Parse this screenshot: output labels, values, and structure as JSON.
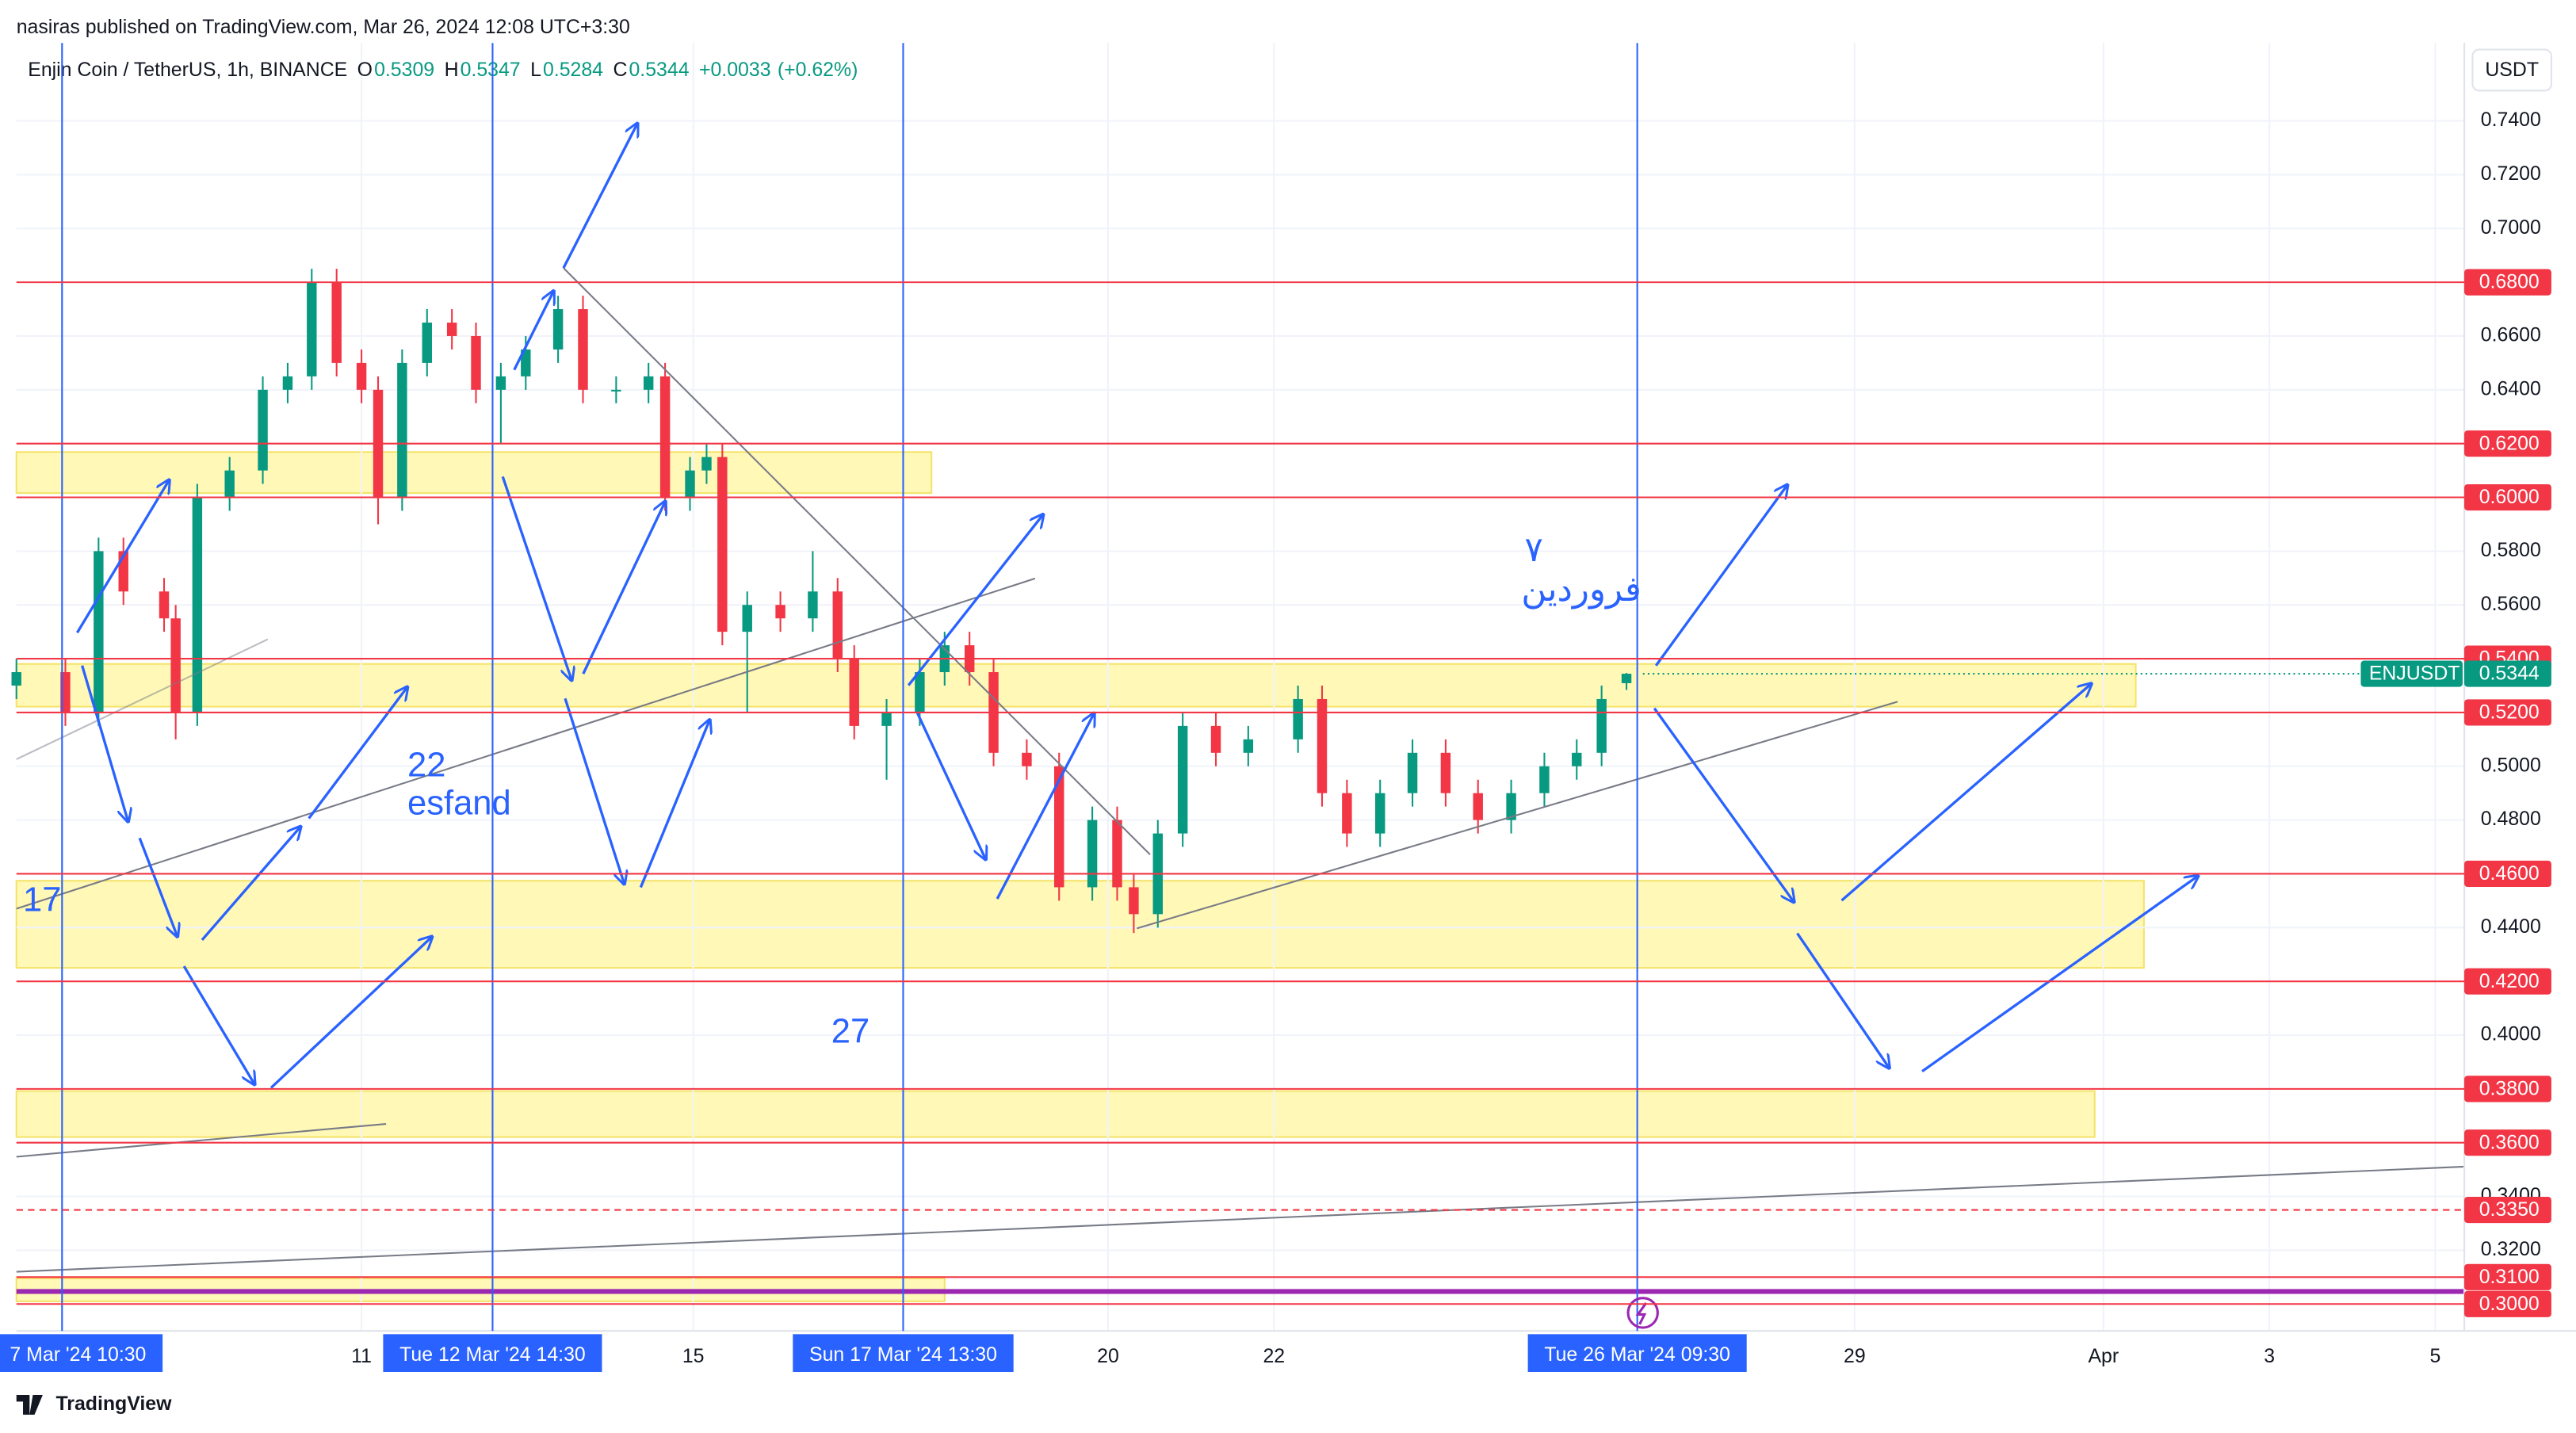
{
  "chart_data": {
    "type": "candlestick",
    "title": "nasiras published on TradingView.com, Mar 26, 2024 12:08 UTC+3:30",
    "symbol": "Enjin Coin / TetherUS, 1h, BINANCE",
    "legend_values": [
      {
        "label": "O",
        "value": 0.5309
      },
      {
        "label": "H",
        "value": 0.5347
      },
      {
        "label": "L",
        "value": 0.5284
      },
      {
        "label": "C",
        "value": 0.5344
      }
    ],
    "change": "+0.0033",
    "change_pct": "(+0.62%)",
    "currency": "USDT",
    "ticker": "ENJUSDT",
    "last_price": {
      "value": 0.5344,
      "label": "0.5344"
    },
    "brand": "TradingView",
    "up_color": "#089981",
    "down_color": "#f23645",
    "x": [
      6.84,
      7.43,
      7.83,
      8.13,
      8.62,
      8.76,
      9.02,
      9.41,
      9.81,
      10.11,
      10.4,
      10.7,
      11,
      11.2,
      11.49,
      11.79,
      12.09,
      12.38,
      12.68,
      12.98,
      13.37,
      13.67,
      14.07,
      14.46,
      14.66,
      14.96,
      15.16,
      15.35,
      15.65,
      16.05,
      16.44,
      16.74,
      16.94,
      17.33,
      17.73,
      18.03,
      18.33,
      18.62,
      19.02,
      19.41,
      19.81,
      20.11,
      20.31,
      20.6,
      20.9,
      21.3,
      21.69,
      22.29,
      22.58,
      22.88,
      23.28,
      23.67,
      24.07,
      24.46,
      24.86,
      25.26,
      25.65,
      25.95,
      26.25
    ],
    "open": [
      0.53,
      0.535,
      0.52,
      0.58,
      0.565,
      0.555,
      0.52,
      0.6,
      0.61,
      0.64,
      0.645,
      0.68,
      0.65,
      0.64,
      0.6,
      0.65,
      0.665,
      0.66,
      0.64,
      0.645,
      0.655,
      0.67,
      0.64,
      0.64,
      0.645,
      0.6,
      0.61,
      0.615,
      0.55,
      0.56,
      0.555,
      0.565,
      0.54,
      0.515,
      0.52,
      0.535,
      0.545,
      0.535,
      0.505,
      0.5,
      0.455,
      0.48,
      0.455,
      0.445,
      0.475,
      0.515,
      0.505,
      0.51,
      0.525,
      0.49,
      0.475,
      0.49,
      0.505,
      0.49,
      0.48,
      0.49,
      0.5,
      0.505,
      0.5309
    ],
    "high": [
      0.54,
      0.54,
      0.585,
      0.585,
      0.57,
      0.56,
      0.605,
      0.615,
      0.645,
      0.65,
      0.685,
      0.685,
      0.655,
      0.645,
      0.655,
      0.67,
      0.67,
      0.665,
      0.65,
      0.66,
      0.675,
      0.675,
      0.645,
      0.65,
      0.65,
      0.615,
      0.62,
      0.62,
      0.565,
      0.565,
      0.58,
      0.57,
      0.545,
      0.525,
      0.54,
      0.55,
      0.55,
      0.54,
      0.51,
      0.505,
      0.485,
      0.485,
      0.46,
      0.48,
      0.52,
      0.52,
      0.515,
      0.53,
      0.53,
      0.495,
      0.495,
      0.51,
      0.51,
      0.495,
      0.495,
      0.505,
      0.51,
      0.53,
      0.5347
    ],
    "low": [
      0.525,
      0.515,
      0.515,
      0.56,
      0.55,
      0.51,
      0.515,
      0.595,
      0.605,
      0.635,
      0.64,
      0.645,
      0.635,
      0.59,
      0.595,
      0.645,
      0.655,
      0.635,
      0.62,
      0.64,
      0.65,
      0.635,
      0.635,
      0.635,
      0.595,
      0.595,
      0.605,
      0.545,
      0.52,
      0.55,
      0.55,
      0.535,
      0.51,
      0.495,
      0.515,
      0.53,
      0.53,
      0.5,
      0.495,
      0.45,
      0.45,
      0.45,
      0.438,
      0.44,
      0.47,
      0.5,
      0.5,
      0.505,
      0.485,
      0.47,
      0.47,
      0.485,
      0.485,
      0.475,
      0.475,
      0.485,
      0.495,
      0.5,
      0.5284
    ],
    "close": [
      0.535,
      0.52,
      0.58,
      0.565,
      0.555,
      0.52,
      0.6,
      0.61,
      0.64,
      0.645,
      0.68,
      0.65,
      0.64,
      0.6,
      0.65,
      0.665,
      0.66,
      0.64,
      0.645,
      0.655,
      0.67,
      0.64,
      0.64,
      0.645,
      0.6,
      0.61,
      0.615,
      0.55,
      0.56,
      0.555,
      0.565,
      0.54,
      0.515,
      0.52,
      0.535,
      0.545,
      0.535,
      0.505,
      0.5,
      0.455,
      0.48,
      0.455,
      0.445,
      0.475,
      0.515,
      0.505,
      0.51,
      0.525,
      0.49,
      0.475,
      0.49,
      0.505,
      0.49,
      0.48,
      0.49,
      0.5,
      0.505,
      0.525,
      0.5344
    ],
    "xlim": [
      6.84,
      36.35
    ],
    "xticks": [
      11,
      15,
      20,
      22,
      29,
      {
        "value": 32,
        "label": "Apr"
      },
      {
        "value": 34,
        "label": "3"
      },
      {
        "value": 36,
        "label": "5"
      }
    ],
    "ylim": [
      0.29,
      0.769
    ],
    "yticks": [
      {
        "value": 0.74,
        "label": "0.7400"
      },
      {
        "value": 0.72,
        "label": "0.7200"
      },
      {
        "value": 0.7,
        "label": "0.7000"
      },
      {
        "value": 0.66,
        "label": "0.6600"
      },
      {
        "value": 0.64,
        "label": "0.6400"
      },
      {
        "value": 0.58,
        "label": "0.5800"
      },
      {
        "value": 0.56,
        "label": "0.5600"
      },
      {
        "value": 0.5,
        "label": "0.5000"
      },
      {
        "value": 0.48,
        "label": "0.4800"
      },
      {
        "value": 0.44,
        "label": "0.4400"
      },
      {
        "value": 0.4,
        "label": "0.4000"
      },
      {
        "value": 0.34,
        "label": "0.3400"
      },
      {
        "value": 0.32,
        "label": "0.3200"
      }
    ],
    "price_lines": [
      {
        "value": 0.68,
        "label": "0.6800"
      },
      {
        "value": 0.62,
        "label": "0.6200"
      },
      {
        "value": 0.6,
        "label": "0.6000"
      },
      {
        "value": 0.54,
        "label": "0.5400"
      },
      {
        "value": 0.52,
        "label": "0.5200"
      },
      {
        "value": 0.46,
        "label": "0.4600"
      },
      {
        "value": 0.42,
        "label": "0.4200"
      },
      {
        "value": 0.38,
        "label": "0.3800"
      },
      {
        "value": 0.36,
        "label": "0.3600"
      },
      {
        "value": 0.335,
        "label": "0.3350",
        "dashed": true
      },
      {
        "value": 0.31,
        "label": "0.3100"
      },
      {
        "value": 0.3,
        "label": "0.3000"
      }
    ],
    "time_markers": [
      {
        "value": 7.39,
        "label": "7 Mar '24   10:30"
      },
      {
        "value": 12.58,
        "label": "Tue 12 Mar '24   14:30"
      },
      {
        "value": 17.53,
        "label": "Sun 17 Mar '24   13:30"
      },
      {
        "value": 26.38,
        "label": "Tue 26 Mar '24   09:30"
      }
    ],
    "annotations": [
      "22",
      "esfand",
      "17",
      "27",
      "٧",
      "فروردین"
    ]
  }
}
